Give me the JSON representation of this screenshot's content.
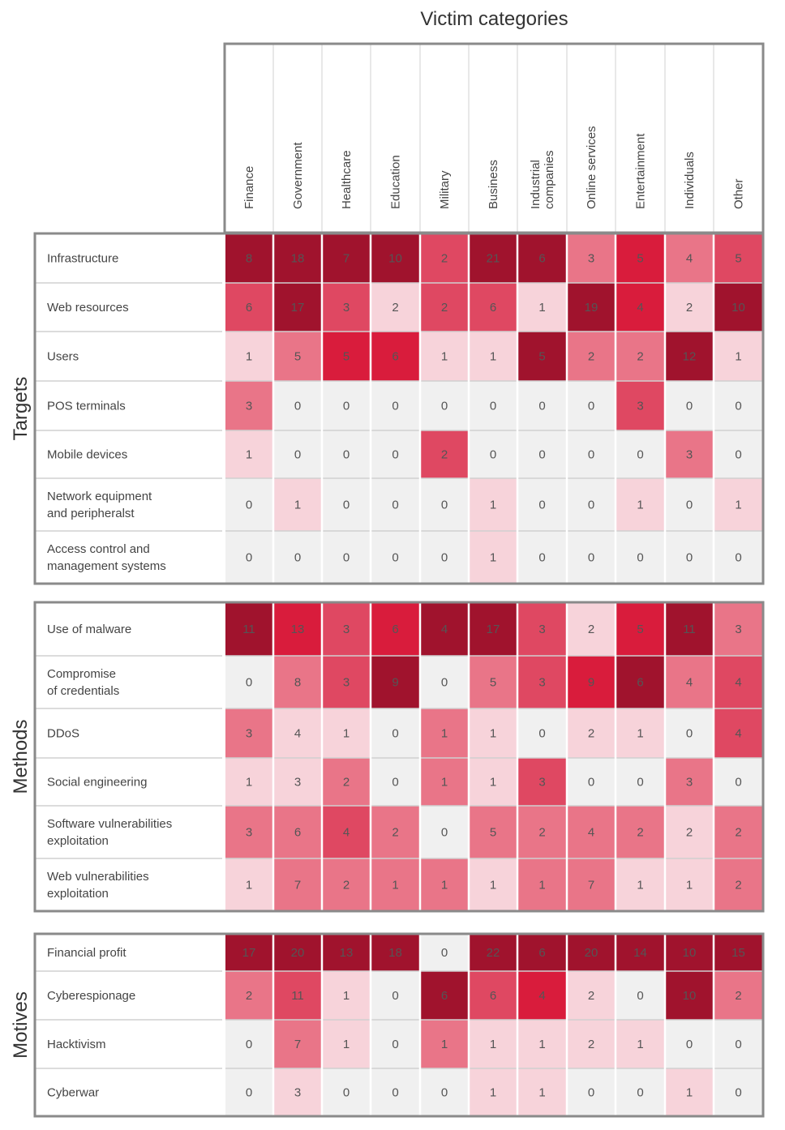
{
  "chart_data": {
    "type": "heatmap",
    "title": "Victim categories",
    "columns": [
      "Finance",
      "Government",
      "Healthcare",
      "Education",
      "Military",
      "Business",
      "Industrial companies",
      "Online services",
      "Entertainment",
      "Individuals",
      "Other"
    ],
    "column_labels": [
      [
        "Finance"
      ],
      [
        "Government"
      ],
      [
        "Healthcare"
      ],
      [
        "Education"
      ],
      [
        "Military"
      ],
      [
        "Business"
      ],
      [
        "Industrial",
        "companies"
      ],
      [
        "Online services"
      ],
      [
        "Entertainment"
      ],
      [
        "Individuals"
      ],
      [
        "Other"
      ]
    ],
    "groups": [
      {
        "name": "Targets",
        "rows": [
          {
            "label": [
              "Infrastructure"
            ],
            "values": [
              8,
              18,
              7,
              10,
              2,
              21,
              6,
              3,
              5,
              4,
              5
            ]
          },
          {
            "label": [
              "Web resources"
            ],
            "values": [
              6,
              17,
              3,
              2,
              2,
              6,
              1,
              19,
              4,
              2,
              10
            ]
          },
          {
            "label": [
              "Users"
            ],
            "values": [
              1,
              5,
              5,
              6,
              1,
              1,
              5,
              2,
              2,
              12,
              1
            ]
          },
          {
            "label": [
              "POS terminals"
            ],
            "values": [
              3,
              0,
              0,
              0,
              0,
              0,
              0,
              0,
              3,
              0,
              0
            ]
          },
          {
            "label": [
              "Mobile devices"
            ],
            "values": [
              1,
              0,
              0,
              0,
              2,
              0,
              0,
              0,
              0,
              3,
              0
            ]
          },
          {
            "label": [
              "Network equipment",
              "and peripheralst"
            ],
            "values": [
              0,
              1,
              0,
              0,
              0,
              1,
              0,
              0,
              1,
              0,
              1
            ]
          },
          {
            "label": [
              "Access control and",
              "management systems"
            ],
            "values": [
              0,
              0,
              0,
              0,
              0,
              1,
              0,
              0,
              0,
              0,
              0
            ]
          }
        ]
      },
      {
        "name": "Methods",
        "rows": [
          {
            "label": [
              "Use of malware"
            ],
            "values": [
              11,
              13,
              3,
              6,
              4,
              17,
              3,
              2,
              5,
              11,
              3
            ]
          },
          {
            "label": [
              "Compromise",
              "of credentials"
            ],
            "values": [
              0,
              8,
              3,
              9,
              0,
              5,
              3,
              9,
              6,
              4,
              4
            ]
          },
          {
            "label": [
              "DDoS"
            ],
            "values": [
              3,
              4,
              1,
              0,
              1,
              1,
              0,
              2,
              1,
              0,
              4
            ]
          },
          {
            "label": [
              "Social engineering"
            ],
            "values": [
              1,
              3,
              2,
              0,
              1,
              1,
              3,
              0,
              0,
              3,
              0
            ]
          },
          {
            "label": [
              "Software vulnerabilities",
              "exploitation"
            ],
            "values": [
              3,
              6,
              4,
              2,
              0,
              5,
              2,
              4,
              2,
              2,
              2
            ]
          },
          {
            "label": [
              "Web vulnerabilities",
              "exploitation"
            ],
            "values": [
              1,
              7,
              2,
              1,
              1,
              1,
              1,
              7,
              1,
              1,
              2
            ]
          }
        ]
      },
      {
        "name": "Motives",
        "rows": [
          {
            "label": [
              "Financial profit"
            ],
            "values": [
              17,
              20,
              13,
              18,
              0,
              22,
              6,
              20,
              14,
              10,
              15
            ]
          },
          {
            "label": [
              "Cyberespionage"
            ],
            "values": [
              2,
              11,
              1,
              0,
              6,
              6,
              4,
              2,
              0,
              10,
              2
            ]
          },
          {
            "label": [
              "Hacktivism"
            ],
            "values": [
              0,
              7,
              1,
              0,
              1,
              1,
              1,
              2,
              1,
              0,
              0
            ]
          },
          {
            "label": [
              "Cyberwar"
            ],
            "values": [
              0,
              3,
              0,
              0,
              0,
              1,
              1,
              0,
              0,
              1,
              0
            ]
          }
        ]
      }
    ],
    "levels": [
      [
        [
          4,
          4,
          4,
          4,
          3,
          4,
          4,
          2,
          5,
          2,
          3
        ],
        [
          3,
          4,
          3,
          1,
          3,
          3,
          1,
          4,
          5,
          1,
          4
        ],
        [
          1,
          2,
          5,
          5,
          1,
          1,
          4,
          2,
          2,
          4,
          1
        ],
        [
          2,
          0,
          0,
          0,
          0,
          0,
          0,
          0,
          3,
          0,
          0
        ],
        [
          1,
          0,
          0,
          0,
          3,
          0,
          0,
          0,
          0,
          2,
          0
        ],
        [
          0,
          1,
          0,
          0,
          0,
          1,
          0,
          0,
          1,
          0,
          1
        ],
        [
          0,
          0,
          0,
          0,
          0,
          1,
          0,
          0,
          0,
          0,
          0
        ]
      ],
      [
        [
          4,
          5,
          3,
          5,
          4,
          4,
          3,
          1,
          5,
          4,
          2
        ],
        [
          0,
          2,
          3,
          4,
          0,
          2,
          3,
          5,
          4,
          2,
          3
        ],
        [
          2,
          1,
          1,
          0,
          2,
          1,
          0,
          1,
          1,
          0,
          3
        ],
        [
          1,
          1,
          2,
          0,
          2,
          1,
          3,
          0,
          0,
          2,
          0
        ],
        [
          2,
          2,
          3,
          2,
          0,
          2,
          2,
          2,
          2,
          1,
          2
        ],
        [
          1,
          2,
          2,
          2,
          2,
          1,
          2,
          2,
          1,
          1,
          2
        ]
      ],
      [
        [
          4,
          4,
          4,
          4,
          0,
          4,
          4,
          4,
          4,
          4,
          4
        ],
        [
          2,
          3,
          1,
          0,
          4,
          3,
          5,
          1,
          0,
          4,
          2
        ],
        [
          0,
          2,
          1,
          0,
          2,
          1,
          1,
          1,
          1,
          0,
          0
        ],
        [
          0,
          1,
          0,
          0,
          0,
          1,
          1,
          0,
          0,
          1,
          0
        ]
      ]
    ],
    "palette": [
      "#f0f0f0",
      "#f7d3da",
      "#e97588",
      "#df4862",
      "#a0132d",
      "#d91c3c"
    ],
    "text_color": "#555555"
  }
}
